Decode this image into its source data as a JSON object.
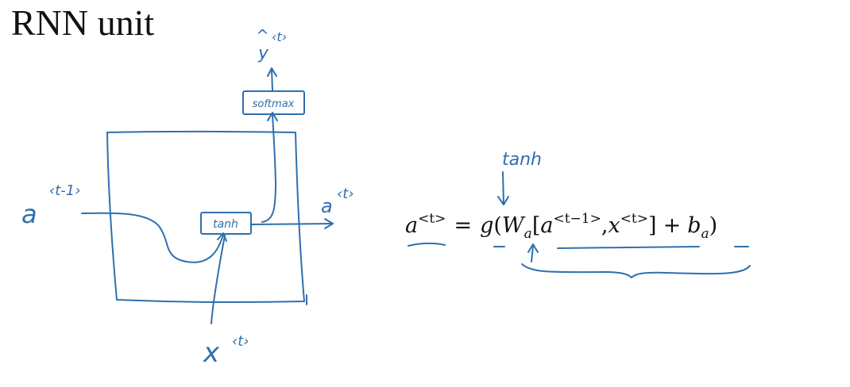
{
  "title": "RNN unit",
  "colors": {
    "ink": "#2f6fae",
    "text": "#111111",
    "background": "#ffffff"
  },
  "diagram": {
    "output_label": {
      "base": "y",
      "hat": "^",
      "sup": "‹t›"
    },
    "softmax_label": "softmax",
    "tanh_label": "tanh",
    "input_a_label": {
      "base": "a",
      "sup": "‹t-1›"
    },
    "output_a_label": {
      "base": "a",
      "sup": "‹t›"
    },
    "input_x_label": {
      "base": "x",
      "sup": "‹t›"
    }
  },
  "equation": {
    "annotation": "tanh",
    "lhs_base": "a",
    "lhs_sup": "<t>",
    "equals": "=",
    "func": "g",
    "open_paren": "(",
    "weight_base": "W",
    "weight_sub": "a",
    "open_bracket": "[",
    "prev_a_base": "a",
    "prev_a_sup": "<t−1>",
    "comma": ",",
    "x_base": "x",
    "x_sup": "<t>",
    "close_bracket": "]",
    "plus": "+",
    "bias_base": "b",
    "bias_sub": "a",
    "close_paren": ")"
  }
}
